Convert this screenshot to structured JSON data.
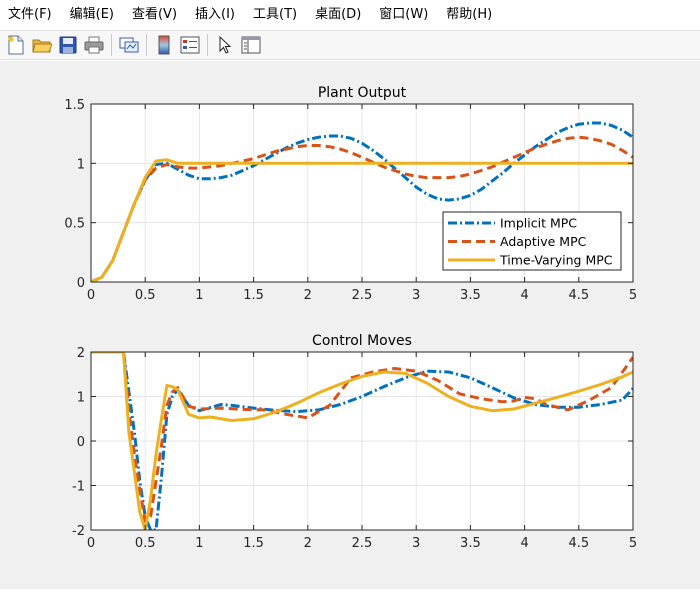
{
  "menu": [
    "文件(F)",
    "编辑(E)",
    "查看(V)",
    "插入(I)",
    "工具(T)",
    "桌面(D)",
    "窗口(W)",
    "帮助(H)"
  ],
  "toolbar": {
    "icons": [
      "new-figure-icon",
      "open-file-icon",
      "save-icon",
      "print-icon",
      "link-plot-icon",
      "colorbar-icon",
      "legend-icon",
      "edit-plot-arrow-icon",
      "property-inspector-icon"
    ]
  },
  "colors": {
    "implicit": "#0072BD",
    "adaptive": "#D95319",
    "timevarying": "#EDB120"
  },
  "chart_data": [
    {
      "type": "line",
      "title": "Plant Output",
      "xlabel": "",
      "ylabel": "",
      "xlim": [
        0,
        5
      ],
      "ylim": [
        0,
        1.5
      ],
      "xticks": [
        "0",
        "0.5",
        "1",
        "1.5",
        "2",
        "2.5",
        "3",
        "3.5",
        "4",
        "4.5",
        "5"
      ],
      "yticks": [
        "0",
        "0.5",
        "1",
        "1.5"
      ],
      "grid": true,
      "legend": "lower-right",
      "x": [
        0,
        0.1,
        0.2,
        0.3,
        0.4,
        0.5,
        0.6,
        0.7,
        0.8,
        0.9,
        1.0,
        1.1,
        1.2,
        1.3,
        1.4,
        1.5,
        1.6,
        1.7,
        1.8,
        1.9,
        2.0,
        2.1,
        2.2,
        2.3,
        2.4,
        2.5,
        2.6,
        2.7,
        2.8,
        2.9,
        3.0,
        3.1,
        3.2,
        3.3,
        3.4,
        3.5,
        3.6,
        3.7,
        3.8,
        3.9,
        4.0,
        4.1,
        4.2,
        4.3,
        4.4,
        4.5,
        4.6,
        4.7,
        4.8,
        4.9,
        5.0
      ],
      "series": [
        {
          "name": "Implicit MPC",
          "style": "dashdot",
          "values": [
            0,
            0.04,
            0.18,
            0.42,
            0.66,
            0.86,
            0.99,
            1.0,
            0.95,
            0.9,
            0.87,
            0.87,
            0.88,
            0.9,
            0.94,
            0.98,
            1.03,
            1.08,
            1.13,
            1.17,
            1.2,
            1.22,
            1.23,
            1.23,
            1.21,
            1.17,
            1.11,
            1.04,
            0.96,
            0.88,
            0.8,
            0.74,
            0.7,
            0.69,
            0.7,
            0.73,
            0.78,
            0.85,
            0.92,
            1.0,
            1.07,
            1.14,
            1.2,
            1.26,
            1.3,
            1.33,
            1.34,
            1.34,
            1.32,
            1.28,
            1.22
          ]
        },
        {
          "name": "Adaptive MPC",
          "style": "dashed",
          "values": [
            0,
            0.04,
            0.18,
            0.42,
            0.66,
            0.86,
            0.96,
            0.99,
            0.97,
            0.96,
            0.96,
            0.97,
            0.98,
            1.0,
            1.02,
            1.04,
            1.07,
            1.1,
            1.12,
            1.14,
            1.15,
            1.15,
            1.14,
            1.12,
            1.09,
            1.05,
            1.01,
            0.97,
            0.94,
            0.91,
            0.89,
            0.88,
            0.88,
            0.88,
            0.89,
            0.91,
            0.94,
            0.97,
            1.01,
            1.05,
            1.09,
            1.13,
            1.16,
            1.19,
            1.21,
            1.22,
            1.21,
            1.19,
            1.16,
            1.11,
            1.05
          ]
        },
        {
          "name": "Time-Varying MPC",
          "style": "solid",
          "values": [
            0,
            0.04,
            0.18,
            0.42,
            0.66,
            0.88,
            1.02,
            1.03,
            1.0,
            1.0,
            1.0,
            1.0,
            1.0,
            1.0,
            1.0,
            1.0,
            1.0,
            1.0,
            1.0,
            1.0,
            1.0,
            1.0,
            1.0,
            1.0,
            1.0,
            1.0,
            1.0,
            1.0,
            1.0,
            1.0,
            1.0,
            1.0,
            1.0,
            1.0,
            1.0,
            1.0,
            1.0,
            1.0,
            1.0,
            1.0,
            1.0,
            1.0,
            1.0,
            1.0,
            1.0,
            1.0,
            1.0,
            1.0,
            1.0,
            1.0,
            1.0
          ]
        }
      ]
    },
    {
      "type": "line",
      "title": "Control Moves",
      "xlabel": "",
      "ylabel": "",
      "xlim": [
        0,
        5
      ],
      "ylim": [
        -2,
        2
      ],
      "xticks": [
        "0",
        "0.5",
        "1",
        "1.5",
        "2",
        "2.5",
        "3",
        "3.5",
        "4",
        "4.5",
        "5"
      ],
      "yticks": [
        "-2",
        "-1",
        "0",
        "1",
        "2"
      ],
      "grid": true,
      "series": [
        {
          "name": "Implicit MPC",
          "style": "dashdot",
          "x": [
            0,
            0.3,
            0.35,
            0.4,
            0.45,
            0.5,
            0.55,
            0.6,
            0.65,
            0.7,
            0.75,
            0.8,
            0.9,
            1.0,
            1.1,
            1.2,
            1.3,
            1.5,
            1.7,
            1.9,
            2.1,
            2.3,
            2.5,
            2.7,
            2.9,
            3.1,
            3.3,
            3.5,
            3.7,
            3.9,
            4.1,
            4.3,
            4.5,
            4.7,
            4.9,
            5.0
          ],
          "values": [
            2,
            2,
            1.1,
            0.2,
            -0.9,
            -1.7,
            -2.0,
            -2.0,
            -0.8,
            0.6,
            1.0,
            1.15,
            0.8,
            0.68,
            0.75,
            0.82,
            0.8,
            0.74,
            0.69,
            0.66,
            0.7,
            0.82,
            1.0,
            1.22,
            1.42,
            1.57,
            1.55,
            1.42,
            1.2,
            0.97,
            0.82,
            0.76,
            0.76,
            0.82,
            0.92,
            1.18
          ]
        },
        {
          "name": "Adaptive MPC",
          "style": "dashed",
          "x": [
            0,
            0.3,
            0.35,
            0.4,
            0.45,
            0.5,
            0.55,
            0.6,
            0.65,
            0.7,
            0.75,
            0.8,
            0.9,
            1.0,
            1.2,
            1.4,
            1.6,
            1.8,
            2.0,
            2.2,
            2.4,
            2.6,
            2.8,
            3.0,
            3.2,
            3.4,
            3.6,
            3.8,
            3.9,
            4.0,
            4.1,
            4.2,
            4.4,
            4.6,
            4.8,
            5.0
          ],
          "values": [
            2,
            2,
            0.7,
            -0.3,
            -1.1,
            -1.8,
            -1.7,
            -0.9,
            -0.1,
            0.8,
            1.1,
            1.2,
            0.78,
            0.72,
            0.74,
            0.71,
            0.7,
            0.6,
            0.52,
            0.8,
            1.42,
            1.55,
            1.63,
            1.57,
            1.36,
            1.06,
            0.95,
            0.88,
            0.9,
            0.98,
            0.95,
            0.82,
            0.7,
            0.92,
            1.2,
            1.88
          ]
        },
        {
          "name": "Time-Varying MPC",
          "style": "solid",
          "x": [
            0,
            0.3,
            0.35,
            0.4,
            0.45,
            0.5,
            0.55,
            0.6,
            0.65,
            0.7,
            0.75,
            0.8,
            0.9,
            1.0,
            1.1,
            1.3,
            1.5,
            1.7,
            1.9,
            2.1,
            2.3,
            2.5,
            2.7,
            2.9,
            3.1,
            3.3,
            3.5,
            3.7,
            3.9,
            4.1,
            4.3,
            4.5,
            4.7,
            4.9,
            5.0
          ],
          "values": [
            2,
            2,
            0.2,
            -0.7,
            -1.6,
            -2.0,
            -1.3,
            -0.3,
            0.5,
            1.25,
            1.22,
            1.15,
            0.6,
            0.52,
            0.54,
            0.46,
            0.5,
            0.65,
            0.85,
            1.08,
            1.28,
            1.45,
            1.55,
            1.52,
            1.3,
            1.0,
            0.78,
            0.68,
            0.72,
            0.85,
            0.98,
            1.12,
            1.27,
            1.44,
            1.55
          ]
        }
      ]
    }
  ]
}
